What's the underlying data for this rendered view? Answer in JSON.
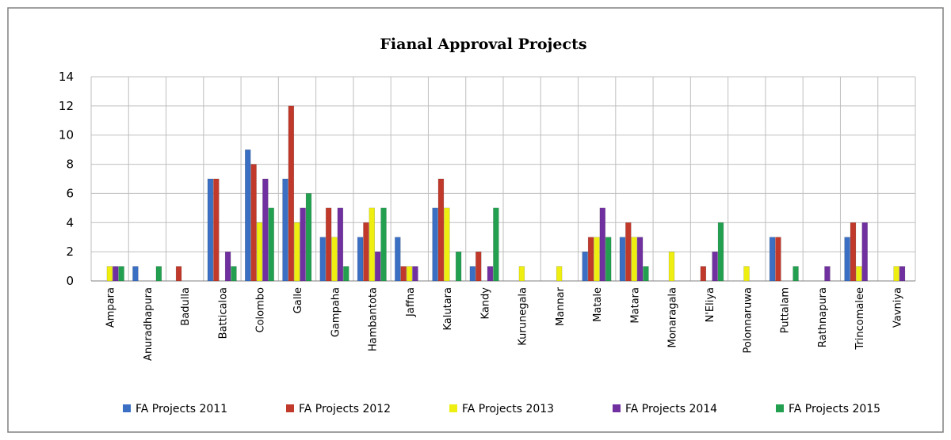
{
  "chart_data": {
    "type": "bar",
    "title": "Fianal Approval Projects",
    "categories": [
      "Ampara",
      "Anuradhapura",
      "Badulla",
      "Batticaloa",
      "Colombo",
      "Galle",
      "Gampaha",
      "Hambantota",
      "Jaffna",
      "Kalutara",
      "Kandy",
      "Kurunegala",
      "Mannar",
      "Matale",
      "Matara",
      "Monaragala",
      "N'Eliya",
      "Polonnaruwa",
      "Puttalam",
      "Rathnapura",
      "Trincomalee",
      "Vavniya"
    ],
    "series": [
      {
        "name": "FA Projects 2011",
        "color": "#3a6fc4",
        "values": [
          0,
          1,
          0,
          7,
          9,
          7,
          3,
          3,
          3,
          5,
          1,
          0,
          0,
          2,
          3,
          0,
          0,
          0,
          3,
          0,
          3,
          0
        ]
      },
      {
        "name": "FA Projects 2012",
        "color": "#c0392b",
        "values": [
          0,
          0,
          1,
          7,
          8,
          12,
          5,
          4,
          1,
          7,
          2,
          0,
          0,
          3,
          4,
          0,
          1,
          0,
          3,
          0,
          4,
          0
        ]
      },
      {
        "name": "FA Projects 2013",
        "color": "#eeee10",
        "values": [
          1,
          0,
          0,
          0,
          4,
          4,
          3,
          5,
          1,
          5,
          0,
          1,
          1,
          3,
          3,
          2,
          0,
          1,
          0,
          0,
          1,
          1
        ]
      },
      {
        "name": "FA Projects 2014",
        "color": "#7030a0",
        "values": [
          1,
          0,
          0,
          2,
          7,
          5,
          5,
          2,
          1,
          0,
          1,
          0,
          0,
          5,
          3,
          0,
          2,
          0,
          0,
          1,
          4,
          1
        ]
      },
      {
        "name": "FA Projects 2015",
        "color": "#22a050",
        "values": [
          1,
          1,
          0,
          1,
          5,
          6,
          1,
          5,
          0,
          2,
          5,
          0,
          0,
          3,
          1,
          0,
          4,
          0,
          1,
          0,
          0,
          0
        ]
      }
    ],
    "ylim": [
      0,
      14
    ],
    "yticks": [
      0,
      2,
      4,
      6,
      8,
      10,
      12,
      14
    ],
    "grid": true,
    "legend": "bottom"
  }
}
